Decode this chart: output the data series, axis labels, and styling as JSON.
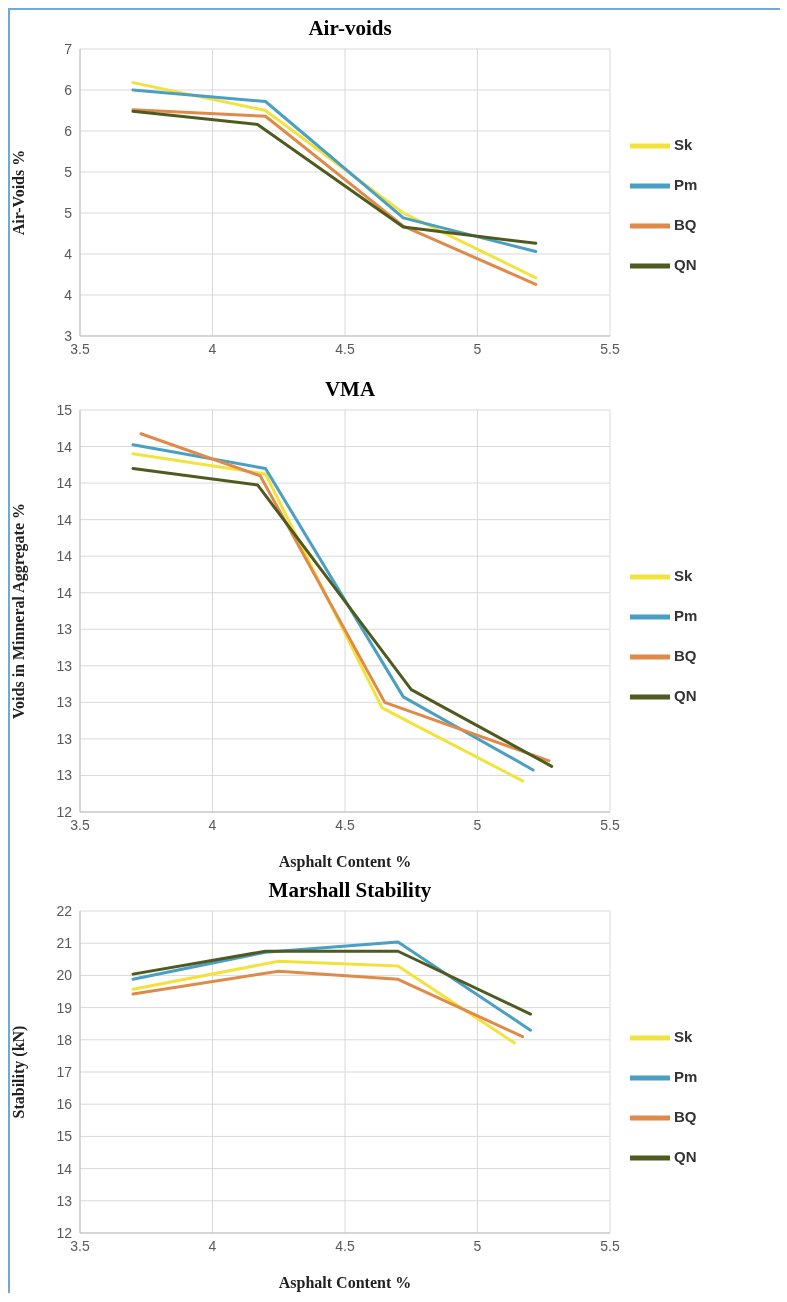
{
  "chart_data": [
    {
      "type": "line",
      "title": "Air-voids",
      "ylabel": "Air-Voids %",
      "xlim": [
        3.5,
        5.5
      ],
      "xticks": [
        3.5,
        4,
        4.5,
        5,
        5.5
      ],
      "ylim": [
        3,
        6.5
      ],
      "yticks": [
        3,
        {
          "value": 3.5,
          "label": "4"
        },
        4,
        {
          "value": 4.5,
          "label": "5"
        },
        5,
        {
          "value": 5.5,
          "label": "6"
        },
        6,
        {
          "value": 6.5,
          "label": "7"
        }
      ],
      "grid": true,
      "legend": "right",
      "marker": "none",
      "line_style": "solid",
      "series": [
        {
          "name": "Sk",
          "color": "#f2e33c",
          "x": [
            3.7,
            4.2,
            4.72,
            5.22
          ],
          "values": [
            6.09,
            5.75,
            4.5,
            3.71
          ]
        },
        {
          "name": "Pm",
          "color": "#4a9fc4",
          "x": [
            3.7,
            4.2,
            4.72,
            5.22
          ],
          "values": [
            6.0,
            5.86,
            4.44,
            4.03
          ]
        },
        {
          "name": "BQ",
          "color": "#e08a4a",
          "x": [
            3.7,
            4.2,
            4.72,
            5.22
          ],
          "values": [
            5.76,
            5.68,
            4.34,
            3.63
          ]
        },
        {
          "name": "QN",
          "color": "#4f5a1e",
          "x": [
            3.7,
            4.17,
            4.72,
            5.22
          ],
          "values": [
            5.74,
            5.58,
            4.33,
            4.13
          ]
        }
      ]
    },
    {
      "type": "line",
      "title": "VMA",
      "xlabel": "Asphalt Content %",
      "ylabel": "Voids in Minneral Aggregate %",
      "xlim": [
        3.5,
        5.5
      ],
      "xticks": [
        3.5,
        4,
        4.5,
        5,
        5.5
      ],
      "ylim": [
        12.4,
        14.6
      ],
      "yticks": [
        {
          "value": 12.4,
          "label": "12"
        },
        {
          "value": 12.6,
          "label": "13"
        },
        {
          "value": 12.8,
          "label": "13"
        },
        {
          "value": 13.0,
          "label": "13"
        },
        {
          "value": 13.2,
          "label": "13"
        },
        {
          "value": 13.4,
          "label": "13"
        },
        {
          "value": 13.6,
          "label": "14"
        },
        {
          "value": 13.8,
          "label": "14"
        },
        {
          "value": 14.0,
          "label": "14"
        },
        {
          "value": 14.2,
          "label": "14"
        },
        {
          "value": 14.4,
          "label": "14"
        },
        {
          "value": 14.6,
          "label": "15"
        }
      ],
      "grid": true,
      "legend": "right",
      "marker": "none",
      "line_style": "solid",
      "series": [
        {
          "name": "Sk",
          "color": "#f2e33c",
          "x": [
            3.7,
            4.2,
            4.64,
            5.17
          ],
          "values": [
            14.36,
            14.25,
            12.97,
            12.57
          ]
        },
        {
          "name": "Pm",
          "color": "#4a9fc4",
          "x": [
            3.7,
            4.2,
            4.72,
            5.21
          ],
          "values": [
            14.41,
            14.28,
            13.03,
            12.63
          ]
        },
        {
          "name": "BQ",
          "color": "#e08a4a",
          "x": [
            3.73,
            4.18,
            4.65,
            5.27
          ],
          "values": [
            14.47,
            14.24,
            13.0,
            12.68
          ]
        },
        {
          "name": "QN",
          "color": "#4f5a1e",
          "x": [
            3.7,
            4.17,
            4.75,
            5.28
          ],
          "values": [
            14.28,
            14.19,
            13.07,
            12.65
          ]
        }
      ]
    },
    {
      "type": "line",
      "title": "Marshall Stability",
      "xlabel": "Asphalt Content %",
      "ylabel": "Stability (kN)",
      "xlim": [
        3.5,
        5.5
      ],
      "xticks": [
        3.5,
        4,
        4.5,
        5,
        5.5
      ],
      "ylim": [
        12,
        22
      ],
      "yticks": [
        12,
        13,
        14,
        15,
        16,
        17,
        18,
        19,
        20,
        21,
        22
      ],
      "grid": true,
      "legend": "right",
      "marker": "none",
      "line_style": "solid",
      "series": [
        {
          "name": "Sk",
          "color": "#f2e33c",
          "x": [
            3.7,
            4.25,
            4.7,
            5.14
          ],
          "values": [
            19.57,
            20.44,
            20.29,
            17.9
          ]
        },
        {
          "name": "Pm",
          "color": "#4a9fc4",
          "x": [
            3.7,
            4.2,
            4.7,
            5.2
          ],
          "values": [
            19.88,
            20.72,
            21.04,
            18.3
          ]
        },
        {
          "name": "BQ",
          "color": "#e08a4a",
          "x": [
            3.7,
            4.25,
            4.7,
            5.17
          ],
          "values": [
            19.42,
            20.13,
            19.88,
            18.1
          ]
        },
        {
          "name": "QN",
          "color": "#4f5a1e",
          "x": [
            3.7,
            4.2,
            4.7,
            5.2
          ],
          "values": [
            20.04,
            20.75,
            20.75,
            18.8
          ]
        }
      ]
    }
  ]
}
